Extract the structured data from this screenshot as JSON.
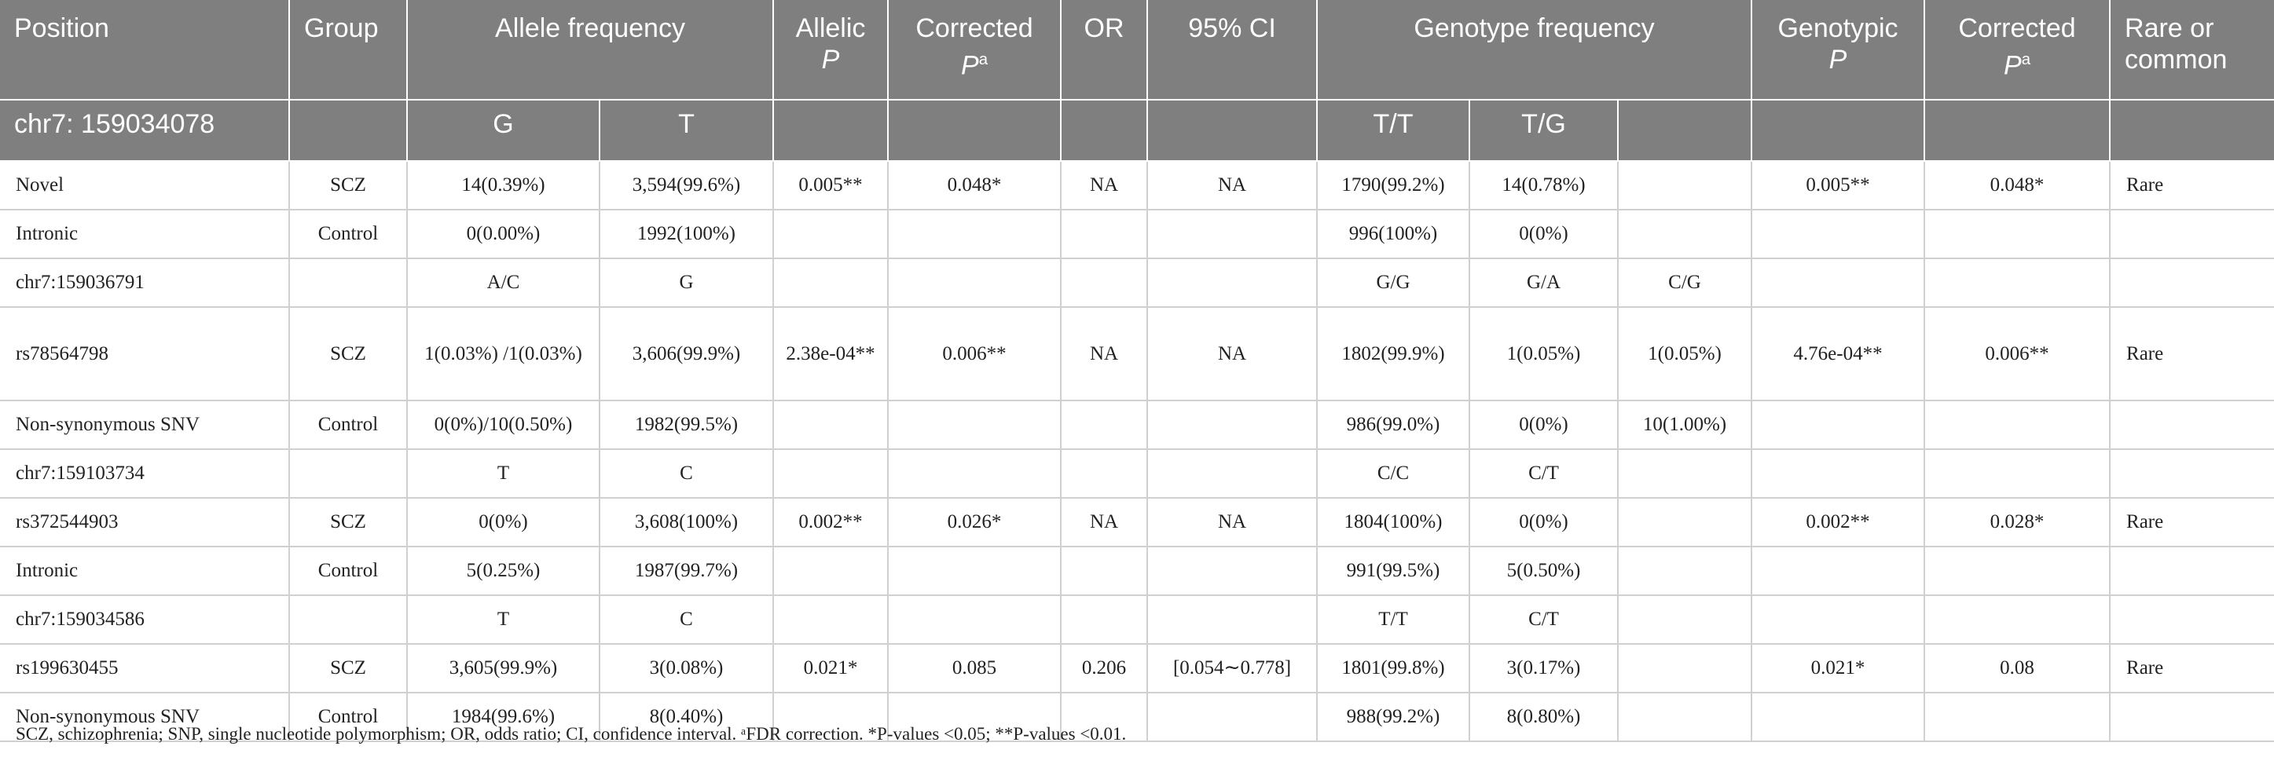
{
  "table": {
    "header1": {
      "position": "Position",
      "group": "Group",
      "allele_frequency": "Allele frequency",
      "allelic_p_line1": "Allelic",
      "allelic_p_line2": "P",
      "corrected_p_line1": "Corrected",
      "corrected_p_line2": "P",
      "corrected_p_sup": "a",
      "or": "OR",
      "ci": "95% CI",
      "genotype_frequency": "Genotype frequency",
      "genotypic_p_line1": "Genotypic",
      "genotypic_p_line2": "P",
      "corrected_p2_line1": "Corrected",
      "corrected_p2_line2": "P",
      "corrected_p2_sup": "a",
      "rare_common": "Rare or common"
    },
    "header2": {
      "position": "chr7: 159034078",
      "allele1": "G",
      "allele2": "T",
      "geno1": "T/T",
      "geno2": "T/G"
    },
    "rows": [
      [
        "Novel",
        "SCZ",
        "14(0.39%)",
        "3,594(99.6%)",
        "0.005**",
        "0.048*",
        "NA",
        "NA",
        "1790(99.2%)",
        "14(0.78%)",
        "",
        "0.005**",
        "0.048*",
        "Rare"
      ],
      [
        "Intronic",
        "Control",
        "0(0.00%)",
        "1992(100%)",
        "",
        "",
        "",
        "",
        "996(100%)",
        "0(0%)",
        "",
        "",
        "",
        ""
      ],
      [
        "chr7:159036791",
        "",
        "A/C",
        "G",
        "",
        "",
        "",
        "",
        "G/G",
        "G/A",
        "C/G",
        "",
        "",
        ""
      ],
      [
        "rs78564798",
        "SCZ",
        "1(0.03%) /1(0.03%)",
        "3,606(99.9%)",
        "2.38e-04**",
        "0.006**",
        "NA",
        "NA",
        "1802(99.9%)",
        "1(0.05%)",
        "1(0.05%)",
        "4.76e-04**",
        "0.006**",
        "Rare"
      ],
      [
        "Non-synonymous SNV",
        "Control",
        "0(0%)/10(0.50%)",
        "1982(99.5%)",
        "",
        "",
        "",
        "",
        "986(99.0%)",
        "0(0%)",
        "10(1.00%)",
        "",
        "",
        ""
      ],
      [
        "chr7:159103734",
        "",
        "T",
        "C",
        "",
        "",
        "",
        "",
        "C/C",
        "C/T",
        "",
        "",
        "",
        ""
      ],
      [
        "rs372544903",
        "SCZ",
        "0(0%)",
        "3,608(100%)",
        "0.002**",
        "0.026*",
        "NA",
        "NA",
        "1804(100%)",
        "0(0%)",
        "",
        "0.002**",
        "0.028*",
        "Rare"
      ],
      [
        "Intronic",
        "Control",
        "5(0.25%)",
        "1987(99.7%)",
        "",
        "",
        "",
        "",
        "991(99.5%)",
        "5(0.50%)",
        "",
        "",
        "",
        ""
      ],
      [
        "chr7:159034586",
        "",
        "T",
        "C",
        "",
        "",
        "",
        "",
        "T/T",
        "C/T",
        "",
        "",
        "",
        ""
      ],
      [
        "rs199630455",
        "SCZ",
        "3,605(99.9%)",
        "3(0.08%)",
        "0.021*",
        "0.085",
        "0.206",
        "[0.054∼0.778]",
        "1801(99.8%)",
        "3(0.17%)",
        "",
        "0.021*",
        "0.08",
        "Rare"
      ],
      [
        "Non-synonymous SNV",
        "Control",
        "1984(99.6%)",
        "8(0.40%)",
        "",
        "",
        "",
        "",
        "988(99.2%)",
        "8(0.80%)",
        "",
        "",
        "",
        ""
      ]
    ]
  },
  "footnote": "SCZ, schizophrenia; SNP, single nucleotide polymorphism; OR, odds ratio; CI, confidence interval. ᵃFDR correction. *P-values <0.05; **P-values <0.01."
}
